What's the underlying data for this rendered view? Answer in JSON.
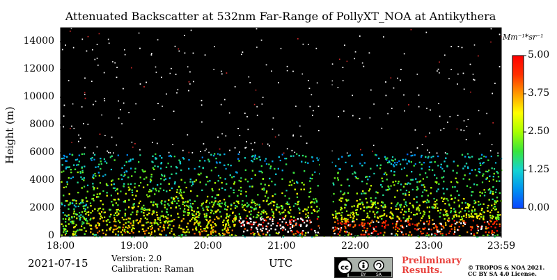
{
  "chart_data": {
    "type": "heatmap",
    "title": "Attenuated Backscatter at 532nm Far-Range of PollyXT_NOA at Antikythera",
    "ylabel": "Height (m)",
    "xlabel": "UTC",
    "x_ticks": [
      "18:00",
      "19:00",
      "20:00",
      "21:00",
      "22:00",
      "23:00",
      "23:59"
    ],
    "y_ticks": [
      0,
      2000,
      4000,
      6000,
      8000,
      10000,
      12000,
      14000
    ],
    "ylim": [
      0,
      15000
    ],
    "no_data_gap": [
      "21:31",
      "21:41"
    ],
    "colorbar": {
      "unit": "Mm⁻¹*sr⁻¹",
      "ticks": [
        "0.00",
        "1.25",
        "2.50",
        "3.75",
        "5.00"
      ],
      "range": [
        0,
        5
      ],
      "colormap": [
        "#0a44ff",
        "#0092f0",
        "#14d3d2",
        "#38e53b",
        "#a7ff00",
        "#ffff00",
        "#ff9a00",
        "#ff3000",
        "#ff0000"
      ]
    }
  },
  "footer": {
    "date": "2021-07-15",
    "version": "Version: 2.0",
    "calibration": "Calibration: Raman",
    "preliminary": [
      "Preliminary",
      "Results."
    ],
    "copyright": [
      "© TROPOS & NOA 2021.",
      "CC BY SA 4.0 License."
    ]
  },
  "license_badge": [
    "cc",
    "BY",
    "SA"
  ]
}
